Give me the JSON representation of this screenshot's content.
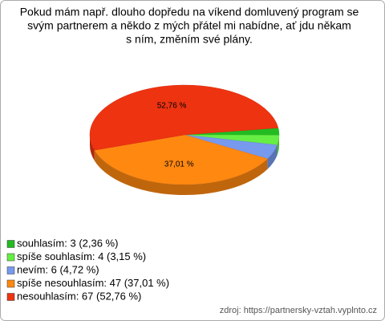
{
  "chart_data": {
    "type": "pie",
    "title": [
      "Pokud mám např. dlouho dopředu na víkend domluvený program se",
      "svým partnerem a někdo z mých přátel mi nabídne, ať jdu někam",
      "s ním, změním své plány."
    ],
    "labels": [
      "souhlasím: 3 (2,36 %)",
      "spíše souhlasím: 4 (3,15 %)",
      "nevím: 6 (4,72 %)",
      "spíše nesouhlasím: 47 (37,01 %)",
      "nesouhlasím: 67 (52,76 %)"
    ],
    "values": [
      2.36,
      3.15,
      4.72,
      37.01,
      52.76
    ],
    "value_labels": [
      null,
      null,
      null,
      "37,01 %",
      "52,76 %"
    ],
    "colors": [
      "#22bb22",
      "#66ee44",
      "#7799ee",
      "#ff8811",
      "#ee3311"
    ],
    "source": "zdroj: https://partnersky-vztah.vyplnto.cz"
  }
}
